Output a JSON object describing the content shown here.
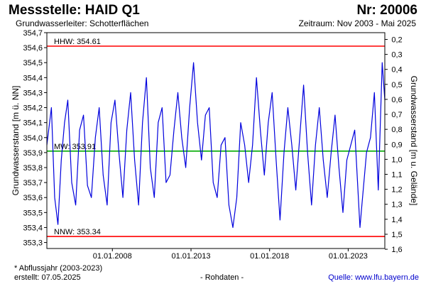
{
  "header": {
    "title": "Messstelle: HAID Q1",
    "station_number": "Nr: 20006",
    "aquifer": "Grundwasserleiter:   Schotterflächen",
    "period": "Zeitraum: Nov 2003 - Mai 2025"
  },
  "footer": {
    "footnote": "* Abflussjahr (2003-2023)",
    "created": "erstellt:  07.05.2025",
    "rawdata": "- Rohdaten -",
    "source": "Quelle: www.lfu.bayern.de"
  },
  "colors": {
    "series": "#0000dd",
    "reference_high": "#ff0000",
    "reference_mean": "#00aa00",
    "reference_low": "#ff0000",
    "link": "#0000cc"
  },
  "chart_data": {
    "type": "line",
    "ylabel": "Grundwasserstand [m ü. NN]",
    "y2label": "Grundwasserstand [m u. Gelände]",
    "xlim": [
      "2003-11-01",
      "2025-05-01"
    ],
    "ylim": [
      353.26,
      354.7
    ],
    "y2lim": [
      0.155,
      1.595
    ],
    "x_ticks": [
      "01.01.2008",
      "01.01.2013",
      "01.01.2018",
      "01.01.2023"
    ],
    "y_ticks": [
      353.3,
      353.4,
      353.5,
      353.6,
      353.7,
      353.8,
      353.9,
      354.0,
      354.1,
      354.2,
      354.3,
      354.4,
      354.5,
      354.6,
      354.7
    ],
    "y_tick_labels": [
      "353,3",
      "353,4",
      "353,5",
      "353,6",
      "353,7",
      "353,8",
      "353,9",
      "354,0",
      "354,1",
      "354,2",
      "354,3",
      "354,4",
      "354,5",
      "354,6",
      "354,7"
    ],
    "y2_ticks": [
      0.2,
      0.3,
      0.4,
      0.5,
      0.6,
      0.7,
      0.8,
      0.9,
      1.0,
      1.1,
      1.2,
      1.3,
      1.4,
      1.5,
      1.6
    ],
    "y2_tick_labels": [
      "0,2",
      "0,3",
      "0,4",
      "0,5",
      "0,6",
      "0,7",
      "0,8",
      "0,9",
      "1,0",
      "1,1",
      "1,2",
      "1,3",
      "1,4",
      "1,5",
      "1,6"
    ],
    "reference_lines": [
      {
        "label": "HHW: 354.61",
        "value": 354.61
      },
      {
        "label": "MW: 353.91",
        "value": 353.91
      },
      {
        "label": "NNW: 353.34",
        "value": 353.34
      }
    ],
    "grid": false,
    "series": [
      {
        "x": [
          "2003-11-01",
          "2004-02-15",
          "2004-05-01",
          "2004-07-15",
          "2004-10-01",
          "2004-12-15",
          "2005-03-01",
          "2005-06-01",
          "2005-09-01",
          "2005-12-01",
          "2006-03-01",
          "2006-06-01",
          "2006-09-01",
          "2006-12-01",
          "2007-03-01",
          "2007-06-01",
          "2007-09-01",
          "2007-12-01",
          "2008-03-01",
          "2008-06-01",
          "2008-09-01",
          "2008-12-01",
          "2009-03-01",
          "2009-06-01",
          "2009-09-01",
          "2009-12-01",
          "2010-03-01",
          "2010-06-01",
          "2010-09-01",
          "2010-12-01",
          "2011-03-01",
          "2011-06-01",
          "2011-09-01",
          "2011-12-01",
          "2012-03-01",
          "2012-06-01",
          "2012-09-01",
          "2012-12-01",
          "2013-03-01",
          "2013-06-01",
          "2013-09-01",
          "2013-12-01",
          "2014-03-01",
          "2014-06-01",
          "2014-09-01",
          "2014-12-01",
          "2015-03-01",
          "2015-06-01",
          "2015-09-01",
          "2015-12-01",
          "2016-03-01",
          "2016-06-01",
          "2016-09-01",
          "2016-12-01",
          "2017-03-01",
          "2017-06-01",
          "2017-09-01",
          "2017-12-01",
          "2018-03-01",
          "2018-06-01",
          "2018-09-01",
          "2018-12-01",
          "2019-03-01",
          "2019-06-01",
          "2019-09-01",
          "2019-12-01",
          "2020-03-01",
          "2020-06-01",
          "2020-09-01",
          "2020-12-01",
          "2021-03-01",
          "2021-06-01",
          "2021-09-01",
          "2021-12-01",
          "2022-03-01",
          "2022-06-01",
          "2022-09-01",
          "2022-12-01",
          "2023-06-01",
          "2023-10-01",
          "2023-11-15",
          "2024-01-01",
          "2024-03-01",
          "2024-06-01",
          "2024-09-01",
          "2024-12-01",
          "2025-03-01",
          "2025-05-01"
        ],
        "y": [
          353.95,
          354.2,
          353.6,
          353.42,
          353.85,
          354.1,
          354.25,
          353.7,
          353.55,
          354.05,
          354.15,
          353.68,
          353.6,
          354.0,
          354.2,
          353.75,
          353.55,
          354.1,
          354.25,
          353.9,
          353.6,
          354.05,
          354.3,
          353.85,
          353.55,
          354.1,
          354.4,
          353.8,
          353.6,
          354.1,
          354.2,
          353.7,
          353.75,
          354.05,
          354.3,
          354.0,
          353.8,
          354.2,
          354.5,
          354.1,
          353.85,
          354.15,
          354.2,
          353.7,
          353.6,
          353.95,
          354.0,
          353.55,
          353.4,
          353.6,
          354.1,
          353.95,
          353.7,
          353.95,
          354.4,
          354.05,
          353.75,
          354.1,
          354.3,
          353.85,
          353.45,
          353.9,
          354.2,
          353.95,
          353.65,
          354.0,
          354.35,
          353.9,
          353.55,
          353.95,
          354.2,
          353.85,
          353.6,
          353.9,
          354.15,
          353.8,
          353.5,
          353.85,
          354.05,
          353.4,
          353.55,
          353.7,
          353.9,
          354.0,
          354.3,
          353.65,
          354.5,
          354.25
        ]
      }
    ]
  }
}
